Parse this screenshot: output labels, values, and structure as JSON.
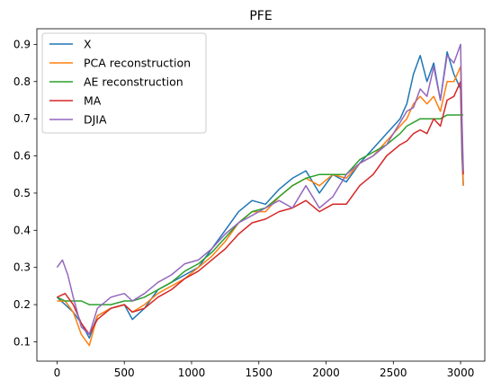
{
  "chart_data": {
    "type": "line",
    "title": "PFE",
    "xlabel": "",
    "ylabel": "",
    "xlim": [
      -150,
      3180
    ],
    "ylim": [
      0.048,
      0.942
    ],
    "xticks": [
      0,
      500,
      1000,
      1500,
      2000,
      2500,
      3000
    ],
    "yticks": [
      0.1,
      0.2,
      0.3,
      0.4,
      0.5,
      0.6,
      0.7,
      0.8,
      0.9
    ],
    "grid": false,
    "legend_position": "upper-left",
    "series": [
      {
        "name": "X",
        "color": "#1f77b4",
        "x": [
          0,
          60,
          120,
          180,
          240,
          300,
          400,
          500,
          560,
          650,
          750,
          850,
          950,
          1050,
          1150,
          1250,
          1350,
          1450,
          1550,
          1650,
          1750,
          1850,
          1950,
          2050,
          2150,
          2250,
          2350,
          2450,
          2550,
          2600,
          2650,
          2700,
          2750,
          2800,
          2850,
          2900,
          2950,
          3000,
          3010,
          3020
        ],
        "y": [
          0.22,
          0.2,
          0.18,
          0.15,
          0.11,
          0.17,
          0.19,
          0.2,
          0.16,
          0.19,
          0.24,
          0.26,
          0.28,
          0.3,
          0.35,
          0.4,
          0.45,
          0.48,
          0.47,
          0.51,
          0.54,
          0.56,
          0.5,
          0.55,
          0.53,
          0.58,
          0.62,
          0.66,
          0.7,
          0.74,
          0.82,
          0.87,
          0.8,
          0.85,
          0.75,
          0.88,
          0.82,
          0.78,
          0.6,
          0.52
        ]
      },
      {
        "name": "PCA reconstruction",
        "color": "#ff7f0e",
        "x": [
          0,
          60,
          120,
          180,
          240,
          300,
          400,
          500,
          560,
          650,
          750,
          850,
          950,
          1050,
          1150,
          1250,
          1350,
          1450,
          1550,
          1650,
          1750,
          1850,
          1950,
          2050,
          2150,
          2250,
          2350,
          2450,
          2550,
          2600,
          2650,
          2700,
          2750,
          2800,
          2850,
          2900,
          2950,
          3000,
          3010,
          3020
        ],
        "y": [
          0.21,
          0.21,
          0.18,
          0.12,
          0.09,
          0.17,
          0.19,
          0.2,
          0.18,
          0.2,
          0.23,
          0.25,
          0.27,
          0.3,
          0.33,
          0.37,
          0.42,
          0.45,
          0.45,
          0.49,
          0.52,
          0.54,
          0.52,
          0.55,
          0.54,
          0.58,
          0.6,
          0.64,
          0.68,
          0.7,
          0.74,
          0.76,
          0.74,
          0.76,
          0.72,
          0.8,
          0.8,
          0.84,
          0.65,
          0.52
        ]
      },
      {
        "name": "AE reconstruction",
        "color": "#2ca02c",
        "x": [
          0,
          60,
          120,
          180,
          240,
          300,
          400,
          500,
          560,
          650,
          750,
          850,
          950,
          1050,
          1150,
          1250,
          1350,
          1450,
          1550,
          1650,
          1750,
          1850,
          1950,
          2050,
          2150,
          2250,
          2350,
          2450,
          2550,
          2600,
          2650,
          2700,
          2750,
          2800,
          2850,
          2900,
          2950,
          3000,
          3010,
          3020
        ],
        "y": [
          0.22,
          0.21,
          0.21,
          0.21,
          0.2,
          0.2,
          0.2,
          0.21,
          0.21,
          0.22,
          0.24,
          0.26,
          0.29,
          0.31,
          0.34,
          0.38,
          0.42,
          0.45,
          0.46,
          0.49,
          0.52,
          0.54,
          0.55,
          0.55,
          0.55,
          0.59,
          0.61,
          0.63,
          0.66,
          0.68,
          0.69,
          0.7,
          0.7,
          0.7,
          0.7,
          0.71,
          0.71,
          0.71,
          0.71,
          0.71
        ]
      },
      {
        "name": "MA",
        "color": "#d62728",
        "x": [
          0,
          60,
          120,
          180,
          240,
          300,
          400,
          500,
          560,
          650,
          750,
          850,
          950,
          1050,
          1150,
          1250,
          1350,
          1450,
          1550,
          1650,
          1750,
          1850,
          1950,
          2050,
          2150,
          2250,
          2350,
          2450,
          2550,
          2600,
          2650,
          2700,
          2750,
          2800,
          2850,
          2900,
          2950,
          3000,
          3010,
          3020
        ],
        "y": [
          0.22,
          0.23,
          0.2,
          0.15,
          0.12,
          0.16,
          0.19,
          0.2,
          0.18,
          0.19,
          0.22,
          0.24,
          0.27,
          0.29,
          0.32,
          0.35,
          0.39,
          0.42,
          0.43,
          0.45,
          0.46,
          0.48,
          0.45,
          0.47,
          0.47,
          0.52,
          0.55,
          0.6,
          0.63,
          0.64,
          0.66,
          0.67,
          0.66,
          0.7,
          0.68,
          0.75,
          0.76,
          0.8,
          0.66,
          0.55
        ]
      },
      {
        "name": "DJIA",
        "color": "#9467bd",
        "x": [
          0,
          40,
          80,
          120,
          180,
          240,
          300,
          400,
          500,
          560,
          650,
          750,
          850,
          950,
          1050,
          1150,
          1250,
          1350,
          1450,
          1550,
          1650,
          1750,
          1850,
          1950,
          2050,
          2150,
          2250,
          2350,
          2450,
          2550,
          2600,
          2650,
          2700,
          2750,
          2800,
          2850,
          2900,
          2950,
          3000,
          3010,
          3020
        ],
        "y": [
          0.3,
          0.32,
          0.28,
          0.22,
          0.14,
          0.12,
          0.19,
          0.22,
          0.23,
          0.21,
          0.23,
          0.26,
          0.28,
          0.31,
          0.32,
          0.35,
          0.39,
          0.42,
          0.44,
          0.46,
          0.48,
          0.46,
          0.52,
          0.46,
          0.49,
          0.55,
          0.58,
          0.6,
          0.63,
          0.69,
          0.72,
          0.73,
          0.78,
          0.76,
          0.84,
          0.75,
          0.87,
          0.85,
          0.9,
          0.7,
          0.56
        ]
      }
    ]
  }
}
